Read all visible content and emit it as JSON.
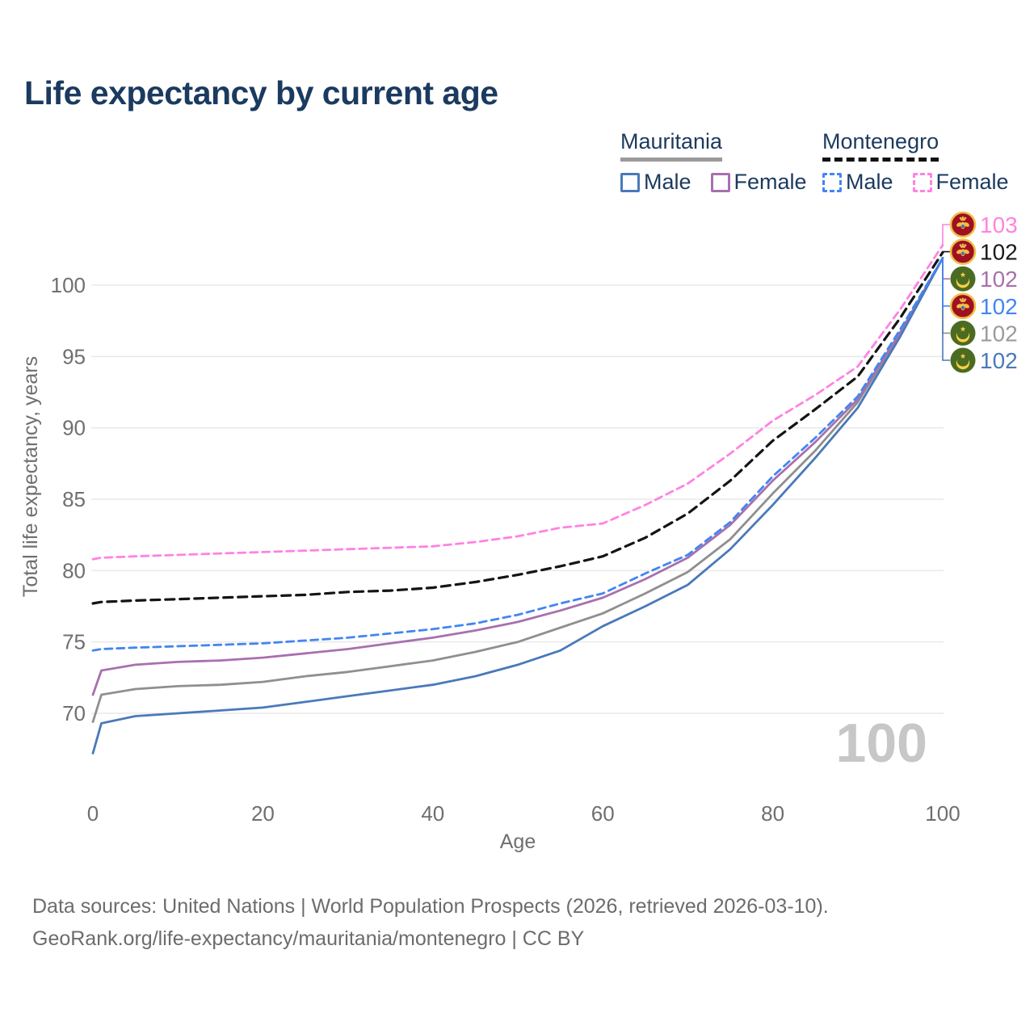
{
  "title": "Life expectancy by current age",
  "legend": {
    "groups": [
      {
        "id": "mauritania",
        "label": "Mauritania",
        "line_style": "solid",
        "items": [
          {
            "label": "Male",
            "color": "#4a79ba"
          },
          {
            "label": "Female",
            "color": "#a870ae"
          }
        ]
      },
      {
        "id": "montenegro",
        "label": "Montenegro",
        "line_style": "dashed",
        "items": [
          {
            "label": "Male",
            "color": "#4285f4"
          },
          {
            "label": "Female",
            "color": "#ff82e2"
          }
        ]
      }
    ]
  },
  "footer": {
    "line1": "Data sources: United Nations | World Population Prospects (2026, retrieved 2026-03-10).",
    "line2": "GeoRank.org/life-expectancy/mauritania/montenegro | CC BY"
  },
  "chart_data": {
    "type": "line",
    "title": "Life expectancy by current age",
    "xlabel": "Age",
    "ylabel": "Total life expectancy, years",
    "xlim": [
      0,
      100
    ],
    "ylim": [
      66,
      104
    ],
    "x_ticks": [
      0,
      20,
      40,
      60,
      80,
      100
    ],
    "y_ticks": [
      70,
      75,
      80,
      85,
      90,
      95,
      100
    ],
    "grid": "horizontal-only",
    "legend_position": "top-right",
    "watermark": "100",
    "colors": {
      "mauritania_male": "#4a79ba",
      "mauritania_female": "#a870ae",
      "mauritania_both": "#8f8f8f",
      "montenegro_male": "#4285f4",
      "montenegro_female": "#ff82e2",
      "montenegro_both": "#141414",
      "title_navy": "#1b3a5f",
      "axis_gray": "#6f6f6f",
      "watermark_gray": "#c7c7c7"
    },
    "series": [
      {
        "id": "mauritania-both",
        "country": "Mauritania",
        "sex": "Both sexes",
        "color": "#8f8f8f",
        "dash": "solid",
        "flag": "mauritania",
        "end_label": "102",
        "end_label_color": "#9b9b9b",
        "end_row": 4,
        "ages": [
          0,
          1,
          5,
          10,
          15,
          20,
          25,
          30,
          35,
          40,
          45,
          50,
          55,
          60,
          65,
          70,
          75,
          80,
          85,
          90,
          95,
          100
        ],
        "values": [
          69.4,
          71.3,
          71.7,
          71.9,
          72.0,
          72.2,
          72.6,
          72.9,
          73.3,
          73.7,
          74.3,
          75.0,
          76.0,
          77.0,
          78.4,
          79.9,
          82.2,
          85.4,
          88.4,
          91.8,
          96.6,
          101.9
        ]
      },
      {
        "id": "mauritania-female",
        "country": "Mauritania",
        "sex": "Female",
        "color": "#a870ae",
        "dash": "solid",
        "flag": "mauritania",
        "end_label": "102",
        "end_label_color": "#a870ae",
        "end_row": 2,
        "ages": [
          0,
          1,
          5,
          10,
          15,
          20,
          25,
          30,
          35,
          40,
          45,
          50,
          55,
          60,
          65,
          70,
          75,
          80,
          85,
          90,
          95,
          100
        ],
        "values": [
          71.3,
          73.0,
          73.4,
          73.6,
          73.7,
          73.9,
          74.2,
          74.5,
          74.9,
          75.3,
          75.8,
          76.4,
          77.2,
          78.1,
          79.4,
          80.9,
          83.2,
          86.3,
          89.0,
          92.0,
          96.7,
          101.9
        ]
      },
      {
        "id": "mauritania-male",
        "country": "Mauritania",
        "sex": "Male",
        "color": "#4a79ba",
        "dash": "solid",
        "flag": "mauritania",
        "end_label": "102",
        "end_label_color": "#4a79ba",
        "end_row": 5,
        "ages": [
          0,
          1,
          5,
          10,
          15,
          20,
          25,
          30,
          35,
          40,
          45,
          50,
          55,
          60,
          65,
          70,
          75,
          80,
          85,
          90,
          95,
          100
        ],
        "values": [
          67.2,
          69.3,
          69.8,
          70.0,
          70.2,
          70.4,
          70.8,
          71.2,
          71.6,
          72.0,
          72.6,
          73.4,
          74.4,
          76.1,
          77.5,
          79.0,
          81.5,
          84.6,
          87.9,
          91.4,
          96.4,
          101.9
        ]
      },
      {
        "id": "montenegro-male",
        "country": "Montenegro",
        "sex": "Male",
        "color": "#4285f4",
        "dash": "dashed",
        "flag": "montenegro",
        "end_label": "102",
        "end_label_color": "#4285f4",
        "end_row": 3,
        "ages": [
          0,
          1,
          5,
          10,
          15,
          20,
          25,
          30,
          35,
          40,
          45,
          50,
          55,
          60,
          65,
          70,
          75,
          80,
          85,
          90,
          95,
          100
        ],
        "values": [
          74.4,
          74.5,
          74.6,
          74.7,
          74.8,
          74.9,
          75.1,
          75.3,
          75.6,
          75.9,
          76.3,
          76.9,
          77.7,
          78.4,
          79.8,
          81.1,
          83.4,
          86.6,
          89.3,
          92.2,
          96.9,
          101.9
        ]
      },
      {
        "id": "montenegro-female",
        "country": "Montenegro",
        "sex": "Female",
        "color": "#ff82e2",
        "dash": "dashed",
        "flag": "montenegro",
        "end_label": "103",
        "end_label_color": "#ff82e2",
        "end_row": 0,
        "ages": [
          0,
          1,
          5,
          10,
          15,
          20,
          25,
          30,
          35,
          40,
          45,
          50,
          55,
          60,
          65,
          70,
          75,
          80,
          85,
          90,
          95,
          100
        ],
        "values": [
          80.8,
          80.9,
          81.0,
          81.1,
          81.2,
          81.3,
          81.4,
          81.5,
          81.6,
          81.7,
          82.0,
          82.4,
          83.0,
          83.3,
          84.6,
          86.1,
          88.2,
          90.5,
          92.3,
          94.3,
          98.3,
          102.8
        ]
      },
      {
        "id": "montenegro-both",
        "country": "Montenegro",
        "sex": "Both sexes",
        "color": "#141414",
        "dash": "dashed",
        "flag": "montenegro",
        "end_label": "102",
        "end_label_color": "#1a1a1a",
        "end_row": 1,
        "ages": [
          0,
          1,
          5,
          10,
          15,
          20,
          25,
          30,
          35,
          40,
          45,
          50,
          55,
          60,
          65,
          70,
          75,
          80,
          85,
          90,
          95,
          100
        ],
        "values": [
          77.7,
          77.8,
          77.9,
          78.0,
          78.1,
          78.2,
          78.3,
          78.5,
          78.6,
          78.8,
          79.2,
          79.7,
          80.3,
          81.0,
          82.3,
          84.0,
          86.3,
          89.1,
          91.3,
          93.6,
          97.7,
          102.3
        ]
      }
    ]
  }
}
